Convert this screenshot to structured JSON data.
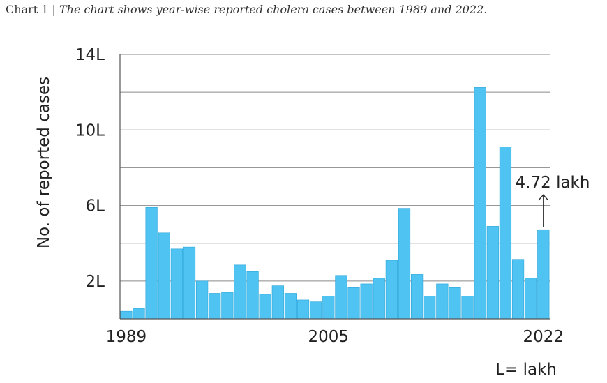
{
  "caption": {
    "prefix": "Chart 1 |",
    "text": "The chart shows year-wise reported cholera cases between 1989 and 2022."
  },
  "chart_data": {
    "type": "bar",
    "ylabel": "No. of reported cases",
    "unit_note": "L= lakh",
    "ylim": [
      0,
      14
    ],
    "y_ticks": [
      {
        "value": 2,
        "label": "2L"
      },
      {
        "value": 6,
        "label": "6L"
      },
      {
        "value": 10,
        "label": "10L"
      },
      {
        "value": 14,
        "label": "14L"
      }
    ],
    "x_tick_labels": [
      {
        "year": 1989,
        "label": "1989"
      },
      {
        "year": 2005,
        "label": "2005"
      },
      {
        "year": 2022,
        "label": "2022"
      }
    ],
    "categories": [
      1989,
      1990,
      1991,
      1992,
      1993,
      1994,
      1995,
      1996,
      1997,
      1998,
      1999,
      2000,
      2001,
      2002,
      2003,
      2004,
      2005,
      2006,
      2007,
      2008,
      2009,
      2010,
      2011,
      2012,
      2013,
      2014,
      2015,
      2016,
      2017,
      2018,
      2019,
      2020,
      2021,
      2022
    ],
    "values": [
      0.4,
      0.55,
      5.9,
      4.55,
      3.7,
      3.8,
      2.0,
      1.35,
      1.4,
      2.85,
      2.5,
      1.3,
      1.75,
      1.35,
      1.0,
      0.9,
      1.2,
      2.3,
      1.65,
      1.85,
      2.15,
      3.1,
      5.85,
      2.35,
      1.2,
      1.85,
      1.65,
      1.2,
      12.25,
      4.9,
      9.1,
      3.15,
      2.15,
      4.72
    ],
    "annotation": {
      "year": 2022,
      "text": "4.72 lakh"
    },
    "grid": true,
    "colors": {
      "bar": "#4fc3f2",
      "bar_stroke": "#2ea6d8",
      "grid": "#8a8a8a"
    }
  }
}
